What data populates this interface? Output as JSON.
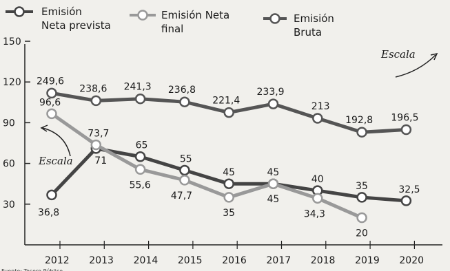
{
  "chart_data": {
    "type": "line",
    "categories": [
      "2012",
      "2013",
      "2014",
      "2015",
      "2016",
      "2017",
      "2018",
      "2019",
      "2020"
    ],
    "left_axis": {
      "ticks": [
        30,
        60,
        90,
        120,
        150
      ],
      "ylim": [
        0,
        150
      ]
    },
    "series": [
      {
        "name": "Emisión Neta prevista",
        "color": "#444444",
        "axis": "left",
        "values": [
          36.8,
          71,
          65,
          55,
          45,
          45,
          40,
          35,
          32.5
        ],
        "labels": [
          "36,8",
          "71",
          "65",
          "55",
          "45",
          "45",
          "40",
          "35",
          "32,5"
        ]
      },
      {
        "name": "Emisión Neta final",
        "color": "#999999",
        "axis": "left",
        "values": [
          96.6,
          73.7,
          55.6,
          47.7,
          35,
          45,
          34.3,
          20,
          null
        ],
        "labels": [
          "96,6",
          "73,7",
          "55,6",
          "47,7",
          "35",
          "45",
          "34,3",
          "20",
          ""
        ]
      },
      {
        "name": "Emisión Bruta",
        "color": "#555555",
        "axis": "right",
        "values": [
          249.6,
          238.6,
          241.3,
          236.8,
          221.4,
          233.9,
          213,
          192.8,
          196.5
        ],
        "labels": [
          "249,6",
          "238,6",
          "241,3",
          "236,8",
          "221,4",
          "233,9",
          "213",
          "192,8",
          "196,5"
        ]
      }
    ],
    "annotations": [
      "Escala",
      "Escala"
    ],
    "source": "Fuente: Tesoro Público"
  }
}
